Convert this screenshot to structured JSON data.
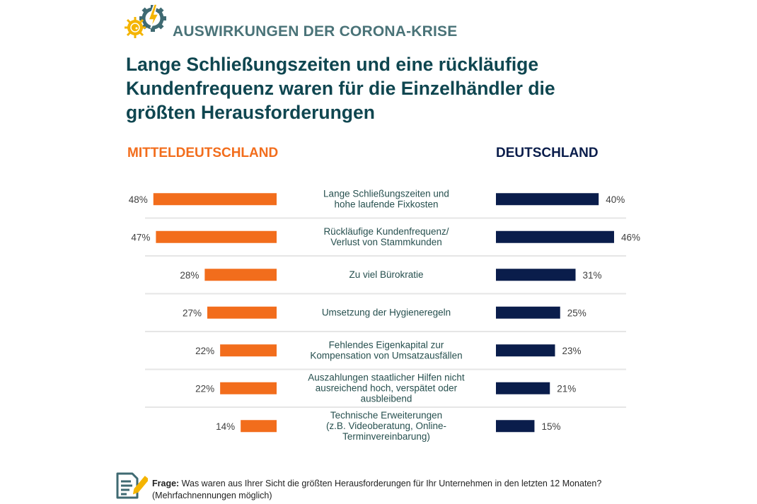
{
  "header": {
    "kicker": "AUSWIRKUNGEN DER CORONA-KRISE",
    "headline": "Lange Schließungszeiten und eine rückläufige Kundenfrequenz waren für die Einzelhändler die größten Herausforderungen",
    "logo_icon": "virus-gear-lightning-icon"
  },
  "colors": {
    "left": "#f26d1c",
    "right": "#0a1d4b",
    "text": "#27504f",
    "divider": "#e6e6e6"
  },
  "chart_data": {
    "type": "bar",
    "orientation": "horizontal-butterfly",
    "title": "Lange Schließungszeiten und eine rückläufige Kundenfrequenz waren für die Einzelhändler die größten Herausforderungen",
    "unit": "%",
    "categories": [
      [
        "Lange Schließungszeiten und",
        "hohe laufende Fixkosten"
      ],
      [
        "Rückläufige Kundenfrequenz/",
        "Verlust von Stammkunden"
      ],
      [
        "Zu viel Bürokratie"
      ],
      [
        "Umsetzung der Hygieneregeln"
      ],
      [
        "Fehlendes Eigenkapital zur",
        "Kompensation von Umsatzausfällen"
      ],
      [
        "Auszahlungen staatlicher Hilfen nicht",
        "ausreichend hoch, verspätet oder",
        "ausbleibend"
      ],
      [
        "Technische Erweiterungen",
        "(z.B. Videoberatung, Online-",
        "Terminvereinbarung)"
      ]
    ],
    "series": [
      {
        "name": "MITTELDEUTSCHLAND",
        "side": "left",
        "values": [
          48,
          47,
          28,
          27,
          22,
          22,
          14
        ],
        "labels": [
          "48%",
          "47%",
          "28%",
          "27%",
          "22%",
          "22%",
          "14%"
        ]
      },
      {
        "name": "DEUTSCHLAND",
        "side": "right",
        "values": [
          40,
          46,
          31,
          25,
          23,
          21,
          15
        ],
        "labels": [
          "40%",
          "46%",
          "31%",
          "25%",
          "23%",
          "21%",
          "15%"
        ]
      }
    ],
    "xlim": [
      0,
      50
    ],
    "grid": false
  },
  "footer": {
    "label": "Frage:",
    "question": " Was waren aus Ihrer Sicht die größten Herausforderungen für Ihr Unternehmen in den letzten 12 Monaten?",
    "note": "(Mehrfachnennungen möglich)",
    "icon": "questionnaire-pencil-icon"
  }
}
